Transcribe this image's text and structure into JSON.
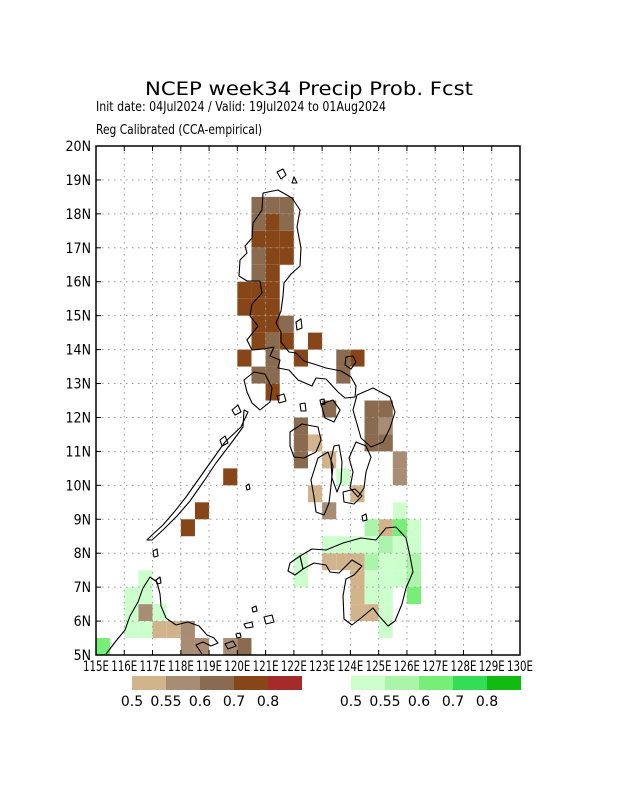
{
  "title": "NCEP week34 Precip Prob. Fcst",
  "subtitle_init": "Init date: 04Jul2024 / Valid: 19Jul2024 to 01Aug2024",
  "subtitle_method": "Reg Calibrated (CCA-empirical)",
  "map": {
    "lon_range": [
      115,
      130
    ],
    "lat_range": [
      5,
      20
    ],
    "grid": true,
    "lon_ticks": [
      "115E",
      "116E",
      "117E",
      "118E",
      "119E",
      "120E",
      "121E",
      "122E",
      "123E",
      "124E",
      "125E",
      "126E",
      "127E",
      "128E",
      "129E",
      "130E"
    ],
    "lat_ticks": [
      "5N",
      "6N",
      "7N",
      "8N",
      "9N",
      "10N",
      "11N",
      "12N",
      "13N",
      "14N",
      "15N",
      "16N",
      "17N",
      "18N",
      "19N",
      "20N"
    ]
  },
  "legend": {
    "dry": {
      "colors": [
        "#d2b48c",
        "#a88c74",
        "#8b6b4f",
        "#874617",
        "#a52a2a"
      ],
      "labels": [
        "0.5",
        "0.55",
        "0.6",
        "0.7",
        "0.8"
      ]
    },
    "wet": {
      "colors": [
        "#ccffcc",
        "#aaf5aa",
        "#77ee77",
        "#33dd55",
        "#11bb11"
      ],
      "labels": [
        "0.5",
        "0.55",
        "0.6",
        "0.7",
        "0.8"
      ]
    }
  },
  "chart_data": {
    "type": "heatmap",
    "title": "NCEP week34 Precip Prob. Fcst",
    "cell_size_deg": 0.5,
    "cells_dry": [
      {
        "lat": 18.0,
        "lon": 120.5,
        "v": 0.6
      },
      {
        "lat": 18.0,
        "lon": 121.0,
        "v": 0.6
      },
      {
        "lat": 18.0,
        "lon": 121.5,
        "v": 0.6
      },
      {
        "lat": 17.5,
        "lon": 120.5,
        "v": 0.6
      },
      {
        "lat": 17.5,
        "lon": 121.0,
        "v": 0.7
      },
      {
        "lat": 17.5,
        "lon": 121.5,
        "v": 0.6
      },
      {
        "lat": 17.0,
        "lon": 120.5,
        "v": 0.7
      },
      {
        "lat": 17.0,
        "lon": 121.0,
        "v": 0.7
      },
      {
        "lat": 17.0,
        "lon": 121.5,
        "v": 0.7
      },
      {
        "lat": 16.5,
        "lon": 120.5,
        "v": 0.6
      },
      {
        "lat": 16.5,
        "lon": 121.0,
        "v": 0.7
      },
      {
        "lat": 16.5,
        "lon": 121.5,
        "v": 0.7
      },
      {
        "lat": 16.0,
        "lon": 120.5,
        "v": 0.6
      },
      {
        "lat": 16.0,
        "lon": 121.0,
        "v": 0.7
      },
      {
        "lat": 15.5,
        "lon": 120.0,
        "v": 0.7
      },
      {
        "lat": 15.5,
        "lon": 120.5,
        "v": 0.7
      },
      {
        "lat": 15.5,
        "lon": 121.0,
        "v": 0.7
      },
      {
        "lat": 15.0,
        "lon": 120.0,
        "v": 0.7
      },
      {
        "lat": 15.0,
        "lon": 120.5,
        "v": 0.7
      },
      {
        "lat": 15.0,
        "lon": 121.0,
        "v": 0.7
      },
      {
        "lat": 14.5,
        "lon": 120.5,
        "v": 0.7
      },
      {
        "lat": 14.5,
        "lon": 121.0,
        "v": 0.7
      },
      {
        "lat": 14.5,
        "lon": 121.5,
        "v": 0.6
      },
      {
        "lat": 14.0,
        "lon": 120.5,
        "v": 0.7
      },
      {
        "lat": 14.0,
        "lon": 121.0,
        "v": 0.6
      },
      {
        "lat": 14.0,
        "lon": 121.5,
        "v": 0.7
      },
      {
        "lat": 14.0,
        "lon": 122.5,
        "v": 0.7
      },
      {
        "lat": 13.5,
        "lon": 120.0,
        "v": 0.7
      },
      {
        "lat": 13.5,
        "lon": 121.0,
        "v": 0.6
      },
      {
        "lat": 13.5,
        "lon": 122.0,
        "v": 0.7
      },
      {
        "lat": 13.5,
        "lon": 123.5,
        "v": 0.6
      },
      {
        "lat": 13.5,
        "lon": 124.0,
        "v": 0.7
      },
      {
        "lat": 13.0,
        "lon": 120.5,
        "v": 0.6
      },
      {
        "lat": 13.0,
        "lon": 121.0,
        "v": 0.6
      },
      {
        "lat": 13.0,
        "lon": 123.5,
        "v": 0.6
      },
      {
        "lat": 12.5,
        "lon": 121.0,
        "v": 0.7
      },
      {
        "lat": 12.0,
        "lon": 123.0,
        "v": 0.6
      },
      {
        "lat": 12.0,
        "lon": 124.5,
        "v": 0.6
      },
      {
        "lat": 12.0,
        "lon": 125.0,
        "v": 0.6
      },
      {
        "lat": 11.5,
        "lon": 122.0,
        "v": 0.6
      },
      {
        "lat": 11.5,
        "lon": 124.5,
        "v": 0.6
      },
      {
        "lat": 11.5,
        "lon": 125.0,
        "v": 0.55
      },
      {
        "lat": 11.0,
        "lon": 122.0,
        "v": 0.6
      },
      {
        "lat": 11.0,
        "lon": 122.5,
        "v": 0.5
      },
      {
        "lat": 11.0,
        "lon": 124.5,
        "v": 0.6
      },
      {
        "lat": 11.0,
        "lon": 125.0,
        "v": 0.6
      },
      {
        "lat": 10.5,
        "lon": 122.0,
        "v": 0.6
      },
      {
        "lat": 10.5,
        "lon": 123.0,
        "v": 0.5
      },
      {
        "lat": 10.5,
        "lon": 125.5,
        "v": 0.55
      },
      {
        "lat": 10.0,
        "lon": 119.5,
        "v": 0.7
      },
      {
        "lat": 10.0,
        "lon": 125.5,
        "v": 0.55
      },
      {
        "lat": 9.5,
        "lon": 122.5,
        "v": 0.5
      },
      {
        "lat": 9.5,
        "lon": 124.0,
        "v": 0.5
      },
      {
        "lat": 9.0,
        "lon": 118.5,
        "v": 0.7
      },
      {
        "lat": 9.0,
        "lon": 123.0,
        "v": 0.55
      },
      {
        "lat": 8.5,
        "lon": 118.0,
        "v": 0.7
      },
      {
        "lat": 8.5,
        "lon": 125.0,
        "v": 0.5
      },
      {
        "lat": 7.5,
        "lon": 123.0,
        "v": 0.5
      },
      {
        "lat": 7.5,
        "lon": 123.5,
        "v": 0.5
      },
      {
        "lat": 7.5,
        "lon": 124.0,
        "v": 0.5
      },
      {
        "lat": 7.0,
        "lon": 124.0,
        "v": 0.5
      },
      {
        "lat": 6.5,
        "lon": 124.0,
        "v": 0.5
      },
      {
        "lat": 6.0,
        "lon": 124.0,
        "v": 0.5
      },
      {
        "lat": 6.0,
        "lon": 124.5,
        "v": 0.5
      },
      {
        "lat": 6.0,
        "lon": 116.5,
        "v": 0.55
      },
      {
        "lat": 5.5,
        "lon": 117.0,
        "v": 0.5
      },
      {
        "lat": 5.5,
        "lon": 117.5,
        "v": 0.5
      },
      {
        "lat": 5.5,
        "lon": 118.0,
        "v": 0.55
      },
      {
        "lat": 5.0,
        "lon": 118.0,
        "v": 0.55
      },
      {
        "lat": 5.0,
        "lon": 118.5,
        "v": 0.55
      },
      {
        "lat": 5.0,
        "lon": 119.5,
        "v": 0.55
      },
      {
        "lat": 5.0,
        "lon": 120.0,
        "v": 0.6
      }
    ],
    "cells_wet": [
      {
        "lat": 10.0,
        "lon": 123.5,
        "v": 0.5
      },
      {
        "lat": 9.0,
        "lon": 125.5,
        "v": 0.5
      },
      {
        "lat": 8.5,
        "lon": 124.5,
        "v": 0.55
      },
      {
        "lat": 8.5,
        "lon": 125.5,
        "v": 0.6
      },
      {
        "lat": 8.5,
        "lon": 126.0,
        "v": 0.5
      },
      {
        "lat": 8.0,
        "lon": 123.0,
        "v": 0.5
      },
      {
        "lat": 8.0,
        "lon": 123.5,
        "v": 0.5
      },
      {
        "lat": 8.0,
        "lon": 124.0,
        "v": 0.5
      },
      {
        "lat": 8.0,
        "lon": 124.5,
        "v": 0.5
      },
      {
        "lat": 8.0,
        "lon": 125.0,
        "v": 0.55
      },
      {
        "lat": 8.0,
        "lon": 125.5,
        "v": 0.5
      },
      {
        "lat": 8.0,
        "lon": 126.0,
        "v": 0.5
      },
      {
        "lat": 7.5,
        "lon": 122.0,
        "v": 0.5
      },
      {
        "lat": 7.5,
        "lon": 124.5,
        "v": 0.55
      },
      {
        "lat": 7.5,
        "lon": 125.0,
        "v": 0.5
      },
      {
        "lat": 7.5,
        "lon": 125.5,
        "v": 0.5
      },
      {
        "lat": 7.5,
        "lon": 126.0,
        "v": 0.55
      },
      {
        "lat": 7.0,
        "lon": 122.0,
        "v": 0.5
      },
      {
        "lat": 7.0,
        "lon": 124.5,
        "v": 0.5
      },
      {
        "lat": 7.0,
        "lon": 125.0,
        "v": 0.5
      },
      {
        "lat": 7.0,
        "lon": 125.5,
        "v": 0.5
      },
      {
        "lat": 7.0,
        "lon": 126.0,
        "v": 0.55
      },
      {
        "lat": 6.5,
        "lon": 124.5,
        "v": 0.5
      },
      {
        "lat": 6.5,
        "lon": 125.0,
        "v": 0.5
      },
      {
        "lat": 6.5,
        "lon": 126.0,
        "v": 0.6
      },
      {
        "lat": 6.0,
        "lon": 125.0,
        "v": 0.5
      },
      {
        "lat": 5.5,
        "lon": 125.0,
        "v": 0.5
      },
      {
        "lat": 7.0,
        "lon": 116.5,
        "v": 0.5
      },
      {
        "lat": 6.5,
        "lon": 116.0,
        "v": 0.5
      },
      {
        "lat": 6.5,
        "lon": 116.5,
        "v": 0.5
      },
      {
        "lat": 6.0,
        "lon": 116.0,
        "v": 0.5
      },
      {
        "lat": 6.0,
        "lon": 117.0,
        "v": 0.5
      },
      {
        "lat": 5.5,
        "lon": 116.0,
        "v": 0.5
      },
      {
        "lat": 5.5,
        "lon": 116.5,
        "v": 0.5
      },
      {
        "lat": 5.0,
        "lon": 115.0,
        "v": 0.6
      }
    ]
  }
}
